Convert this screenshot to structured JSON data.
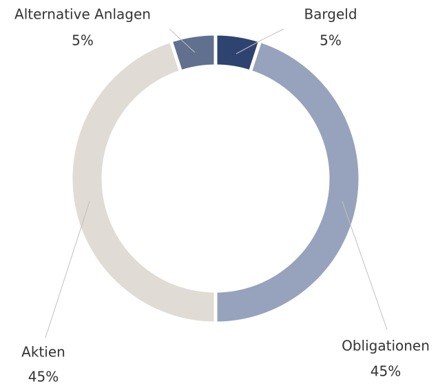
{
  "chart_data": {
    "type": "pie",
    "categories": [
      "Bargeld",
      "Obligationen",
      "Aktien",
      "Alternative Anlagen"
    ],
    "values": [
      5,
      45,
      45,
      5
    ],
    "value_labels": [
      "5%",
      "45%",
      "45%",
      "5%"
    ],
    "colors": [
      "#2e4370",
      "#97a3bc",
      "#e0dbd5",
      "#62708f"
    ]
  }
}
